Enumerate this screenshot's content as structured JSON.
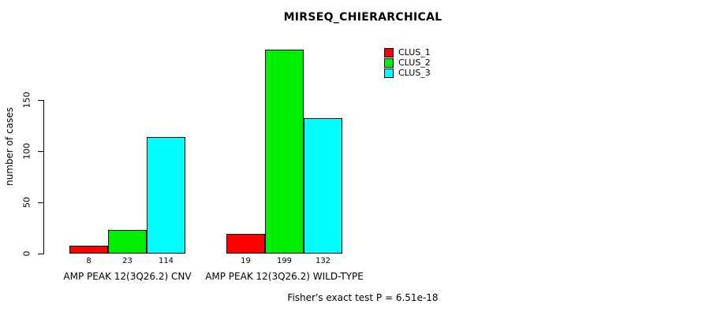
{
  "chart_data": {
    "type": "bar",
    "title": "MIRSEQ_CHIERARCHICAL",
    "xlabel": "",
    "ylabel": "number of cases",
    "yticks": [
      0,
      50,
      100,
      150
    ],
    "ylim": [
      0,
      200
    ],
    "grid": false,
    "legend_position": "top-right",
    "categories": [
      "AMP PEAK 12(3Q26.2) CNV",
      "AMP PEAK 12(3Q26.2) WILD-TYPE"
    ],
    "series": [
      {
        "name": "CLUS_1",
        "color": "#ff0000",
        "values": [
          8,
          19
        ]
      },
      {
        "name": "CLUS_2",
        "color": "#00ee00",
        "values": [
          23,
          199
        ]
      },
      {
        "name": "CLUS_3",
        "color": "#00ffff",
        "values": [
          114,
          132
        ]
      }
    ],
    "bar_value_labels": true,
    "annotation": "Fisher's exact test P = 6.51e-18"
  }
}
